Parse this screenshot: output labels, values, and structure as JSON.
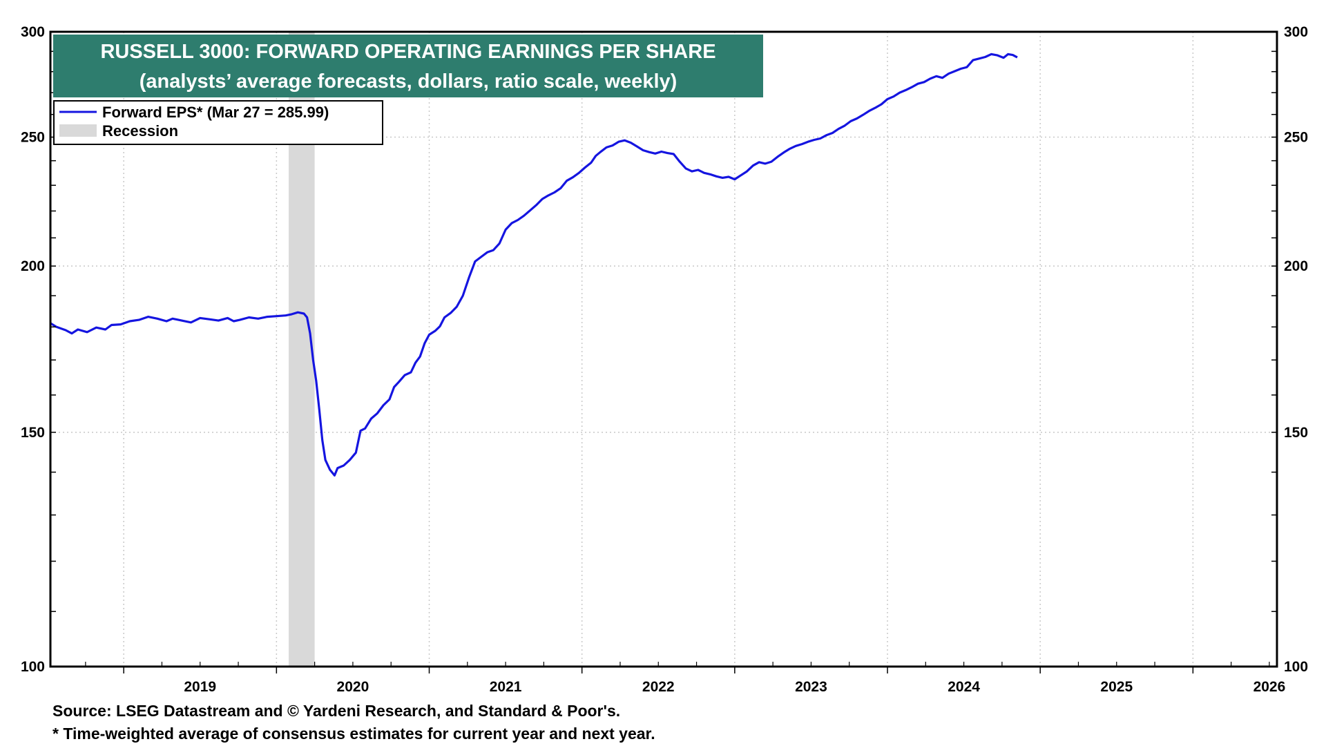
{
  "chart_data": {
    "type": "line",
    "title": "RUSSELL 3000: FORWARD OPERATING EARNINGS PER SHARE",
    "subtitle": "(analysts’ average forecasts, dollars, ratio scale, weekly)",
    "yscale": "log",
    "ylim": [
      100,
      300
    ],
    "yticks": [
      100,
      150,
      200,
      250,
      300
    ],
    "xlim": [
      2018.52,
      2026.55
    ],
    "xticks": [
      2019,
      2020,
      2021,
      2022,
      2023,
      2024,
      2025,
      2026
    ],
    "grid": true,
    "legend": {
      "position": "top-left",
      "items": [
        "Forward EPS* (Mar 27 = 285.99)",
        "Recession"
      ]
    },
    "recession": [
      {
        "start": 2020.08,
        "end": 2020.25
      }
    ],
    "series": [
      {
        "name": "Forward EPS*",
        "color": "#1515e0",
        "points": [
          [
            2018.52,
            181.2
          ],
          [
            2018.56,
            180.0
          ],
          [
            2018.62,
            179.0
          ],
          [
            2018.66,
            178.0
          ],
          [
            2018.7,
            179.2
          ],
          [
            2018.76,
            178.4
          ],
          [
            2018.82,
            179.8
          ],
          [
            2018.88,
            179.2
          ],
          [
            2018.92,
            180.6
          ],
          [
            2018.98,
            180.8
          ],
          [
            2019.04,
            181.8
          ],
          [
            2019.1,
            182.2
          ],
          [
            2019.16,
            183.2
          ],
          [
            2019.22,
            182.6
          ],
          [
            2019.28,
            181.8
          ],
          [
            2019.32,
            182.6
          ],
          [
            2019.38,
            182.0
          ],
          [
            2019.44,
            181.4
          ],
          [
            2019.5,
            182.8
          ],
          [
            2019.56,
            182.4
          ],
          [
            2019.62,
            182.0
          ],
          [
            2019.68,
            182.8
          ],
          [
            2019.72,
            181.8
          ],
          [
            2019.76,
            182.2
          ],
          [
            2019.82,
            183.0
          ],
          [
            2019.88,
            182.6
          ],
          [
            2019.94,
            183.2
          ],
          [
            2020.0,
            183.4
          ],
          [
            2020.06,
            183.6
          ],
          [
            2020.1,
            184.0
          ],
          [
            2020.14,
            184.6
          ],
          [
            2020.18,
            184.2
          ],
          [
            2020.2,
            183.0
          ],
          [
            2020.22,
            178.0
          ],
          [
            2020.24,
            170.0
          ],
          [
            2020.26,
            164.0
          ],
          [
            2020.28,
            156.0
          ],
          [
            2020.3,
            148.0
          ],
          [
            2020.32,
            143.0
          ],
          [
            2020.35,
            140.6
          ],
          [
            2020.38,
            139.2
          ],
          [
            2020.4,
            141.0
          ],
          [
            2020.44,
            141.6
          ],
          [
            2020.48,
            143.0
          ],
          [
            2020.52,
            144.8
          ],
          [
            2020.55,
            150.4
          ],
          [
            2020.58,
            151.0
          ],
          [
            2020.62,
            153.6
          ],
          [
            2020.66,
            155.0
          ],
          [
            2020.7,
            157.2
          ],
          [
            2020.74,
            158.8
          ],
          [
            2020.77,
            162.2
          ],
          [
            2020.8,
            163.6
          ],
          [
            2020.84,
            165.6
          ],
          [
            2020.88,
            166.4
          ],
          [
            2020.91,
            169.2
          ],
          [
            2020.94,
            171.0
          ],
          [
            2020.97,
            175.0
          ],
          [
            2021.0,
            177.6
          ],
          [
            2021.04,
            178.8
          ],
          [
            2021.07,
            180.2
          ],
          [
            2021.1,
            183.0
          ],
          [
            2021.14,
            184.4
          ],
          [
            2021.18,
            186.4
          ],
          [
            2021.22,
            190.0
          ],
          [
            2021.26,
            196.0
          ],
          [
            2021.3,
            201.6
          ],
          [
            2021.34,
            203.2
          ],
          [
            2021.38,
            204.8
          ],
          [
            2021.42,
            205.6
          ],
          [
            2021.46,
            208.0
          ],
          [
            2021.5,
            213.0
          ],
          [
            2021.54,
            215.4
          ],
          [
            2021.58,
            216.6
          ],
          [
            2021.62,
            218.2
          ],
          [
            2021.66,
            220.2
          ],
          [
            2021.7,
            222.2
          ],
          [
            2021.74,
            224.6
          ],
          [
            2021.78,
            226.0
          ],
          [
            2021.82,
            227.2
          ],
          [
            2021.86,
            228.8
          ],
          [
            2021.9,
            231.8
          ],
          [
            2021.94,
            233.2
          ],
          [
            2021.98,
            235.0
          ],
          [
            2022.02,
            237.2
          ],
          [
            2022.06,
            239.2
          ],
          [
            2022.09,
            242.0
          ],
          [
            2022.12,
            243.6
          ],
          [
            2022.16,
            245.6
          ],
          [
            2022.2,
            246.4
          ],
          [
            2022.24,
            248.0
          ],
          [
            2022.28,
            248.6
          ],
          [
            2022.32,
            247.6
          ],
          [
            2022.36,
            246.0
          ],
          [
            2022.4,
            244.4
          ],
          [
            2022.44,
            243.6
          ],
          [
            2022.48,
            243.0
          ],
          [
            2022.52,
            243.8
          ],
          [
            2022.56,
            243.2
          ],
          [
            2022.6,
            242.8
          ],
          [
            2022.64,
            239.6
          ],
          [
            2022.68,
            236.8
          ],
          [
            2022.72,
            235.6
          ],
          [
            2022.76,
            236.2
          ],
          [
            2022.8,
            235.0
          ],
          [
            2022.84,
            234.4
          ],
          [
            2022.88,
            233.6
          ],
          [
            2022.92,
            233.0
          ],
          [
            2022.96,
            233.4
          ],
          [
            2023.0,
            232.4
          ],
          [
            2023.04,
            234.0
          ],
          [
            2023.08,
            235.6
          ],
          [
            2023.12,
            238.0
          ],
          [
            2023.16,
            239.4
          ],
          [
            2023.2,
            238.8
          ],
          [
            2023.24,
            239.6
          ],
          [
            2023.28,
            241.6
          ],
          [
            2023.32,
            243.4
          ],
          [
            2023.36,
            245.0
          ],
          [
            2023.4,
            246.2
          ],
          [
            2023.44,
            247.0
          ],
          [
            2023.48,
            248.0
          ],
          [
            2023.52,
            248.8
          ],
          [
            2023.56,
            249.4
          ],
          [
            2023.6,
            250.8
          ],
          [
            2023.64,
            251.8
          ],
          [
            2023.68,
            253.6
          ],
          [
            2023.72,
            255.0
          ],
          [
            2023.76,
            257.0
          ],
          [
            2023.8,
            258.2
          ],
          [
            2023.84,
            259.8
          ],
          [
            2023.88,
            261.6
          ],
          [
            2023.92,
            263.0
          ],
          [
            2023.96,
            264.6
          ],
          [
            2024.0,
            267.0
          ],
          [
            2024.04,
            268.2
          ],
          [
            2024.08,
            270.0
          ],
          [
            2024.12,
            271.2
          ],
          [
            2024.16,
            272.6
          ],
          [
            2024.2,
            274.2
          ],
          [
            2024.24,
            275.0
          ],
          [
            2024.28,
            276.6
          ],
          [
            2024.32,
            277.8
          ],
          [
            2024.36,
            277.0
          ],
          [
            2024.4,
            279.0
          ],
          [
            2024.44,
            280.2
          ],
          [
            2024.48,
            281.4
          ],
          [
            2024.52,
            282.2
          ],
          [
            2024.56,
            285.6
          ],
          [
            2024.6,
            286.4
          ],
          [
            2024.64,
            287.2
          ],
          [
            2024.68,
            288.6
          ],
          [
            2024.72,
            288.0
          ],
          [
            2024.76,
            286.8
          ],
          [
            2024.79,
            288.6
          ],
          [
            2024.82,
            288.2
          ],
          [
            2024.85,
            287.0
          ]
        ]
      }
    ],
    "footnotes": [
      "Source: LSEG Datastream and © Yardeni Research, and Standard & Poor's.",
      "* Time-weighted average of consensus estimates for current year and next year."
    ]
  },
  "colors": {
    "line": "#1515e0",
    "title_bg": "#2e7d6e",
    "recession": "#d9d9d9",
    "grid": "#c8c8c8"
  }
}
